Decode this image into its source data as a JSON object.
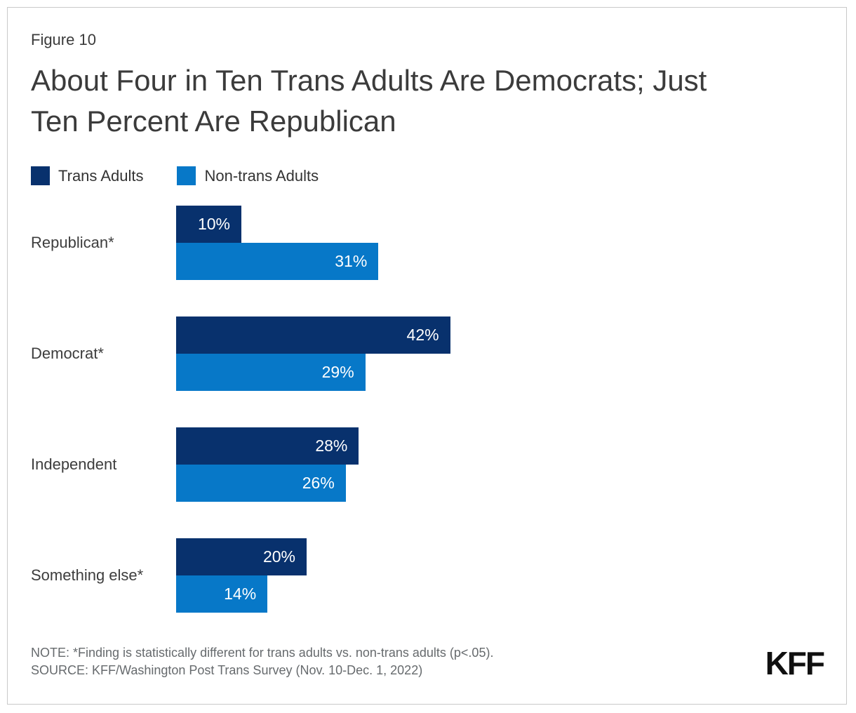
{
  "figure_label": "Figure 10",
  "title": "About Four in Ten Trans Adults Are Democrats; Just\nTen Percent Are Republican",
  "legend": {
    "items": [
      {
        "label": "Trans Adults",
        "color": "#08316d"
      },
      {
        "label": "Non-trans Adults",
        "color": "#0778c8"
      }
    ]
  },
  "chart_data": {
    "type": "bar",
    "orientation": "horizontal",
    "title": "About Four in Ten Trans Adults Are Democrats; Just Ten Percent Are Republican",
    "categories": [
      "Republican*",
      "Democrat*",
      "Independent",
      "Something else*"
    ],
    "series": [
      {
        "name": "Trans Adults",
        "color": "#08316d",
        "values": [
          10,
          42,
          28,
          20
        ]
      },
      {
        "name": "Non-trans Adults",
        "color": "#0778c8",
        "values": [
          31,
          29,
          26,
          14
        ]
      }
    ],
    "value_suffix": "%",
    "value_label_position": "inside-end",
    "xlim": [
      0,
      100
    ],
    "grid": false,
    "legend_position": "top-left"
  },
  "note": "NOTE: *Finding is statistically different for trans adults vs. non-trans adults (p<.05).",
  "source": "SOURCE: KFF/Washington Post Trans Survey (Nov. 10-Dec. 1, 2022)",
  "logo_text": "KFF"
}
